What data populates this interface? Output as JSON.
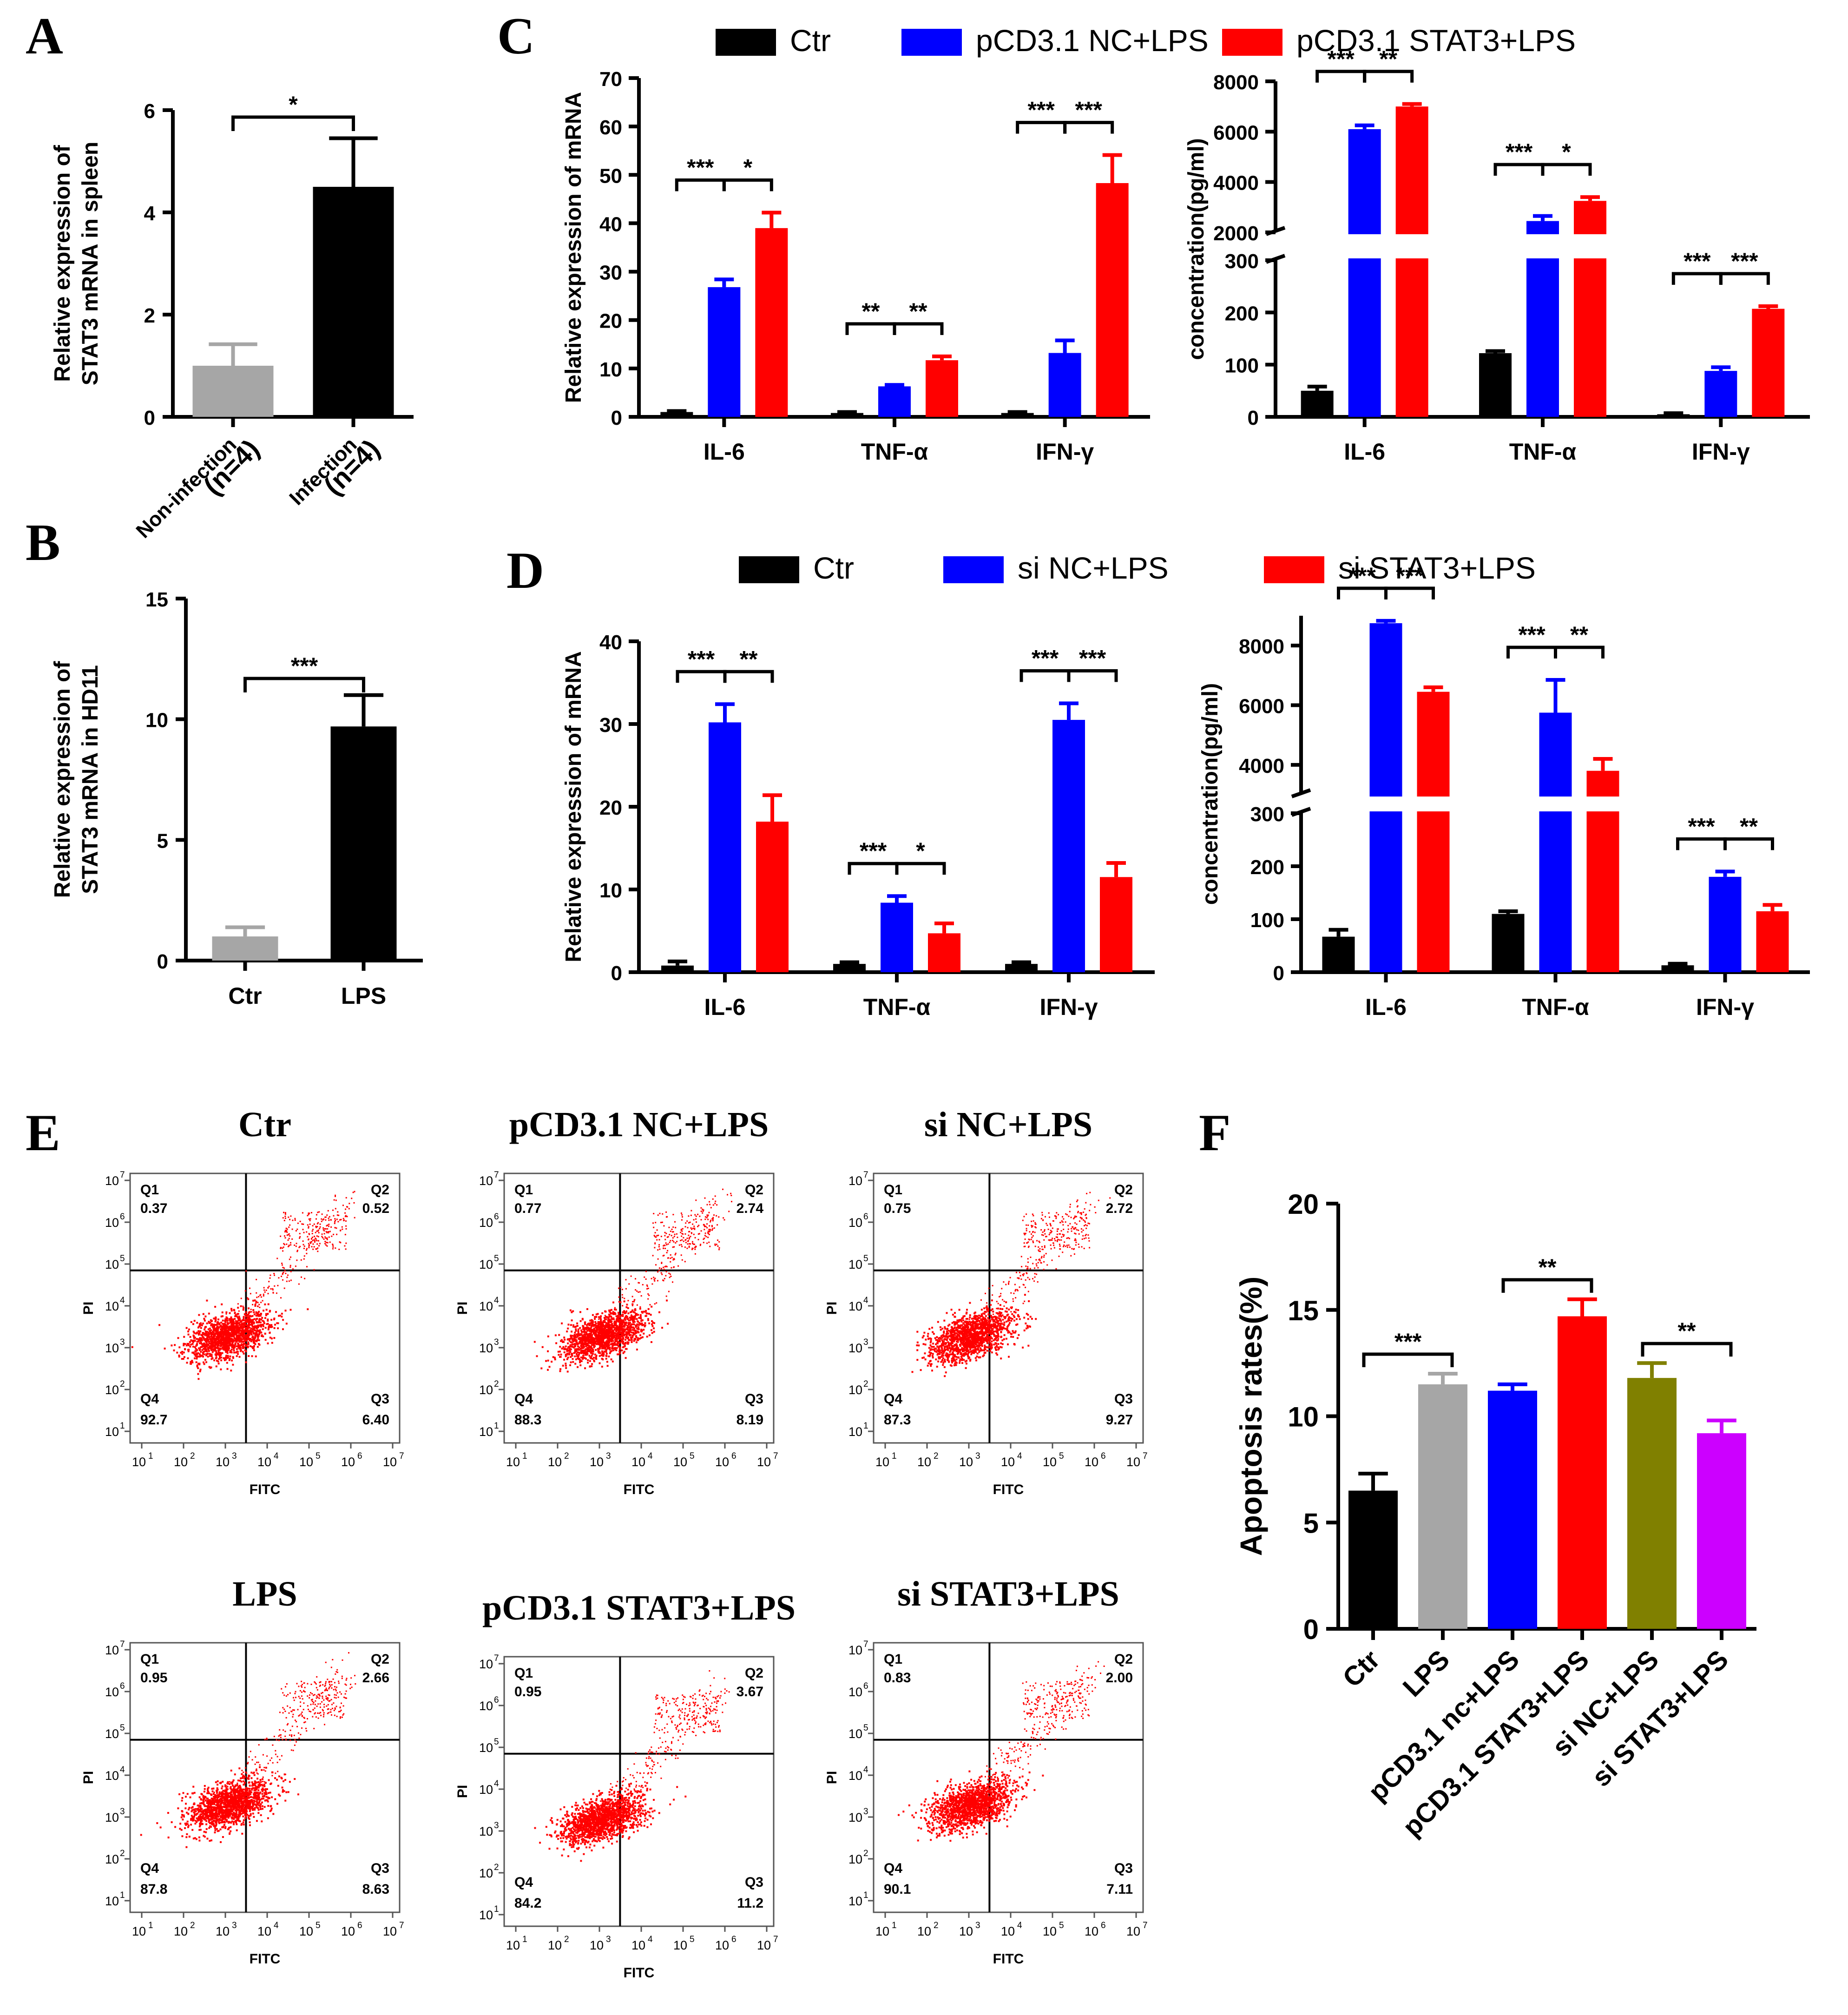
{
  "chart_data": [
    {
      "id": "A",
      "type": "bar",
      "panel": "A",
      "categories": [
        "Non-infection",
        "Infection"
      ],
      "sublabels": [
        "(n=4)",
        "(n=4)"
      ],
      "values": [
        1.0,
        4.5
      ],
      "errors": [
        0.42,
        0.95
      ],
      "colors": [
        "#a6a6a6",
        "#000000"
      ],
      "ylabel": [
        "Relative expression of",
        "STAT3 mRNA in spleen"
      ],
      "ylim": [
        0,
        6
      ],
      "yticks": [
        0,
        2,
        4,
        6
      ],
      "significance": [
        {
          "from": 0,
          "to": 1,
          "label": "*"
        }
      ]
    },
    {
      "id": "B",
      "type": "bar",
      "panel": "B",
      "categories": [
        "Ctr",
        "LPS"
      ],
      "values": [
        1.0,
        9.7
      ],
      "errors": [
        0.38,
        1.3
      ],
      "colors": [
        "#a6a6a6",
        "#000000"
      ],
      "ylabel": [
        "Relative expression of",
        "STAT3 mRNA in HD11"
      ],
      "ylim": [
        0,
        15
      ],
      "yticks": [
        0,
        5,
        10,
        15
      ],
      "significance": [
        {
          "from": 0,
          "to": 1,
          "label": "***"
        }
      ]
    },
    {
      "id": "C1",
      "type": "bar",
      "panel": "C",
      "legend": [
        "Ctr",
        "pCD3.1 NC+LPS",
        "pCD3.1 STAT3+LPS"
      ],
      "colors": [
        "#000000",
        "#0000ff",
        "#ff0000"
      ],
      "categories": [
        "IL-6",
        "TNF-α",
        "IFN-γ"
      ],
      "series": [
        {
          "name": "Ctr",
          "values": [
            1.0,
            0.8,
            0.8
          ],
          "errors": [
            0.2,
            0.2,
            0.2
          ]
        },
        {
          "name": "pCD3.1 NC+LPS",
          "values": [
            26.8,
            6.3,
            13.2
          ],
          "errors": [
            1.6,
            0.3,
            2.6
          ]
        },
        {
          "name": "pCD3.1 STAT3+LPS",
          "values": [
            39.0,
            11.7,
            48.3
          ],
          "errors": [
            3.2,
            0.8,
            5.8
          ]
        }
      ],
      "ylabel": "Relative expression of mRNA",
      "ylim": [
        0,
        70
      ],
      "yticks": [
        0,
        10,
        20,
        30,
        40,
        50,
        60,
        70
      ],
      "significance": [
        {
          "cat": 0,
          "labels": [
            "***",
            "*"
          ]
        },
        {
          "cat": 1,
          "labels": [
            "**",
            "**"
          ]
        },
        {
          "cat": 2,
          "labels": [
            "***",
            "***"
          ]
        }
      ]
    },
    {
      "id": "C2",
      "type": "bar",
      "panel": "C",
      "categories": [
        "IL-6",
        "TNF-α",
        "IFN-γ"
      ],
      "series": [
        {
          "name": "Ctr",
          "values": [
            50,
            122,
            5
          ],
          "errors": [
            8,
            4,
            2
          ]
        },
        {
          "name": "pCD3.1 NC+LPS",
          "values": [
            6100,
            2450,
            88
          ],
          "errors": [
            150,
            200,
            7
          ]
        },
        {
          "name": "pCD3.1 STAT3+LPS",
          "values": [
            7000,
            3250,
            207
          ],
          "errors": [
            100,
            150,
            5
          ]
        }
      ],
      "ylabel": "concentration(pg/ml)",
      "ylim": [
        0,
        8000
      ],
      "axis_break": [
        300,
        2000
      ],
      "yticks_low": [
        0,
        100,
        200,
        300
      ],
      "yticks_high": [
        2000,
        4000,
        6000,
        8000
      ],
      "significance": [
        {
          "cat": 0,
          "labels": [
            "***",
            "**"
          ]
        },
        {
          "cat": 1,
          "labels": [
            "***",
            "*"
          ]
        },
        {
          "cat": 2,
          "labels": [
            "***",
            "***"
          ]
        }
      ]
    },
    {
      "id": "D1",
      "type": "bar",
      "panel": "D",
      "legend": [
        "Ctr",
        "si NC+LPS",
        "si STAT3+LPS"
      ],
      "colors": [
        "#000000",
        "#0000ff",
        "#ff0000"
      ],
      "categories": [
        "IL-6",
        "TNF-α",
        "IFN-γ"
      ],
      "series": [
        {
          "name": "Ctr",
          "values": [
            0.8,
            1.0,
            1.0
          ],
          "errors": [
            0.5,
            0.2,
            0.2
          ]
        },
        {
          "name": "si NC+LPS",
          "values": [
            30.2,
            8.4,
            30.5
          ],
          "errors": [
            2.2,
            0.8,
            2.0
          ]
        },
        {
          "name": "si STAT3+LPS",
          "values": [
            18.2,
            4.7,
            11.5
          ],
          "errors": [
            3.2,
            1.2,
            1.7
          ]
        }
      ],
      "ylabel": "Relative expression of mRNA",
      "ylim": [
        0,
        40
      ],
      "yticks": [
        0,
        10,
        20,
        30,
        40
      ],
      "significance": [
        {
          "cat": 0,
          "labels": [
            "***",
            "**"
          ]
        },
        {
          "cat": 1,
          "labels": [
            "***",
            "*"
          ]
        },
        {
          "cat": 2,
          "labels": [
            "***",
            "***"
          ]
        }
      ]
    },
    {
      "id": "D2",
      "type": "bar",
      "panel": "D",
      "categories": [
        "IL-6",
        "TNF-α",
        "IFN-γ"
      ],
      "series": [
        {
          "name": "Ctr",
          "values": [
            67,
            110,
            13
          ],
          "errors": [
            13,
            5,
            3
          ]
        },
        {
          "name": "si NC+LPS",
          "values": [
            8750,
            5750,
            180
          ],
          "errors": [
            80,
            1100,
            10
          ]
        },
        {
          "name": "si STAT3+LPS",
          "values": [
            6450,
            3800,
            115
          ],
          "errors": [
            150,
            400,
            12
          ]
        }
      ],
      "ylabel": "concentration(pg/ml)",
      "ylim": [
        0,
        9000
      ],
      "axis_break": [
        300,
        3000
      ],
      "yticks_low": [
        0,
        100,
        200,
        300
      ],
      "yticks_high": [
        4000,
        6000,
        8000
      ],
      "significance": [
        {
          "cat": 0,
          "labels": [
            "***",
            "***"
          ]
        },
        {
          "cat": 1,
          "labels": [
            "***",
            "**"
          ]
        },
        {
          "cat": 2,
          "labels": [
            "***",
            "**"
          ]
        }
      ]
    },
    {
      "id": "F",
      "type": "bar",
      "panel": "F",
      "categories": [
        "Ctr",
        "LPS",
        "pCD3.1 nc+LPS",
        "pCD3.1 STAT3+LPS",
        "si NC+LPS",
        "si STAT3+LPS"
      ],
      "values": [
        6.5,
        11.5,
        11.2,
        14.7,
        11.8,
        9.2
      ],
      "errors": [
        0.8,
        0.5,
        0.3,
        0.8,
        0.7,
        0.6
      ],
      "colors": [
        "#000000",
        "#a6a6a6",
        "#0000ff",
        "#ff0000",
        "#808000",
        "#cc00ff"
      ],
      "ylabel": "Apoptosis rates(%)",
      "ylim": [
        0,
        20
      ],
      "yticks": [
        0,
        5,
        10,
        15,
        20
      ],
      "significance": [
        {
          "from": 0,
          "to": 1,
          "label": "***"
        },
        {
          "from": 2,
          "to": 3,
          "label": "**"
        },
        {
          "from": 4,
          "to": 5,
          "label": "**"
        }
      ]
    }
  ],
  "flow": {
    "panel": "E",
    "xlabel": "FITC",
    "ylabel": "PI",
    "ticks": [
      "10",
      "10",
      "10",
      "10",
      "10",
      "10",
      "10"
    ],
    "exps": [
      "1",
      "2",
      "3",
      "4",
      "5",
      "6",
      "7"
    ],
    "plots": [
      {
        "title": "Ctr",
        "q1": "0.37",
        "q2": "0.52",
        "q3": "6.40",
        "q4": "92.7"
      },
      {
        "title": "pCD3.1 NC+LPS",
        "q1": "0.77",
        "q2": "2.74",
        "q3": "8.19",
        "q4": "88.3"
      },
      {
        "title": "si NC+LPS",
        "q1": "0.75",
        "q2": "2.72",
        "q3": "9.27",
        "q4": "87.3"
      },
      {
        "title": "LPS",
        "q1": "0.95",
        "q2": "2.66",
        "q3": "8.63",
        "q4": "87.8"
      },
      {
        "title": "pCD3.1 STAT3+LPS",
        "q1": "0.95",
        "q2": "3.67",
        "q3": "11.2",
        "q4": "84.2"
      },
      {
        "title": "si STAT3+LPS",
        "q1": "0.83",
        "q2": "2.00",
        "q3": "7.11",
        "q4": "90.1"
      }
    ],
    "quadrant_labels": [
      "Q1",
      "Q2",
      "Q3",
      "Q4"
    ]
  }
}
